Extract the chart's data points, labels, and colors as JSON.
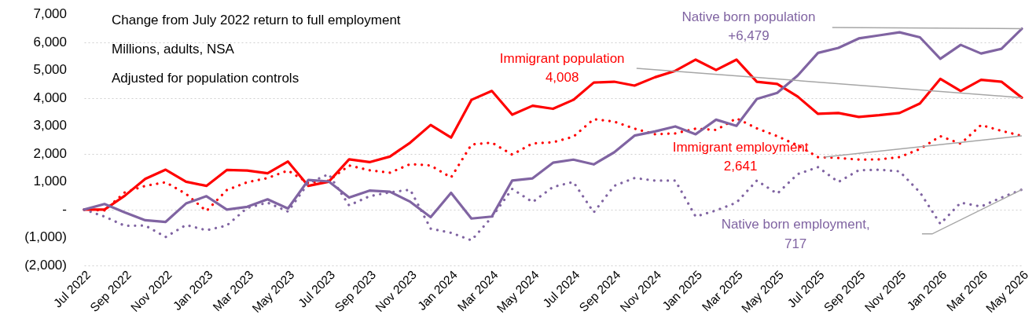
{
  "chart_data": {
    "type": "line",
    "annotations": [
      "Change from July 2022 return to full employment",
      "Millions, adults, NSA",
      "Adjusted for population controls",
      "4,008",
      "2,641",
      "+6,479",
      "717"
    ],
    "categories": [
      "Jul 2022",
      null,
      "Sep 2022",
      null,
      "Nov 2022",
      null,
      "Jan 2023",
      null,
      "Mar 2023",
      null,
      "May 2023",
      null,
      "Jul 2023",
      null,
      "Sep 2023",
      null,
      "Nov 2023",
      null,
      "Jan 2024",
      null,
      "Mar 2024",
      null,
      "May 2024",
      null,
      "Jul 2024",
      null,
      "Sep 2024",
      null,
      "Nov 2024",
      null,
      "Jan 2025",
      null,
      "Mar 2025",
      null,
      "May 2025",
      null,
      "Jul 2025",
      null,
      "Sep 2025",
      null,
      "Nov 2025",
      null,
      "Jan 2026",
      null,
      "Mar 2026",
      null,
      "May 2026"
    ],
    "series": [
      {
        "name": "Immigrant population",
        "color": "#ff0000",
        "line_style": "solid",
        "values": [
          0,
          0,
          500,
          1100,
          1430,
          1000,
          850,
          1420,
          1400,
          1300,
          1720,
          850,
          1000,
          1800,
          1700,
          1900,
          2400,
          3030,
          2580,
          3930,
          4250,
          3400,
          3720,
          3610,
          3930,
          4550,
          4580,
          4440,
          4740,
          4970,
          5370,
          5000,
          5370,
          4580,
          4500,
          4050,
          3430,
          3460,
          3320,
          3380,
          3460,
          3800,
          4680,
          4250,
          4650,
          4580,
          4008
        ]
      },
      {
        "name": "Immigrant employment",
        "color": "#ff0000",
        "line_style": "dotted",
        "values": [
          0,
          -30,
          620,
          850,
          980,
          560,
          -50,
          700,
          980,
          1130,
          1400,
          950,
          1040,
          1580,
          1410,
          1320,
          1630,
          1580,
          1150,
          2330,
          2400,
          1970,
          2370,
          2410,
          2610,
          3240,
          3150,
          2900,
          2700,
          2730,
          2900,
          2850,
          3270,
          2910,
          2630,
          2300,
          1880,
          1850,
          1790,
          1800,
          1880,
          2170,
          2630,
          2360,
          3030,
          2820,
          2641
        ]
      },
      {
        "name": "Native born population",
        "color": "#8064a2",
        "line_style": "solid",
        "values": [
          0,
          200,
          -100,
          -380,
          -440,
          220,
          480,
          0,
          100,
          370,
          40,
          1060,
          1010,
          430,
          680,
          640,
          280,
          -270,
          600,
          -320,
          -250,
          1040,
          1120,
          1680,
          1790,
          1620,
          2050,
          2650,
          2800,
          2980,
          2700,
          3220,
          3000,
          3960,
          4180,
          4800,
          5610,
          5790,
          6130,
          6240,
          6350,
          6170,
          5400,
          5900,
          5590,
          5760,
          6479
        ]
      },
      {
        "name": "Native born employment,",
        "color": "#8064a2",
        "line_style": "dotted",
        "values": [
          0,
          -250,
          -580,
          -570,
          -980,
          -550,
          -740,
          -570,
          60,
          250,
          -70,
          950,
          1270,
          150,
          480,
          620,
          710,
          -680,
          -830,
          -1100,
          -270,
          740,
          270,
          810,
          990,
          -100,
          850,
          1130,
          1040,
          1040,
          -250,
          -30,
          250,
          1040,
          570,
          1270,
          1520,
          990,
          1410,
          1430,
          1370,
          620,
          -510,
          250,
          110,
          430,
          717
        ]
      }
    ],
    "ylim": [
      -2000,
      7000
    ],
    "yticks": [
      {
        "value": 7000,
        "label": "7,000"
      },
      {
        "value": 6000,
        "label": "6,000"
      },
      {
        "value": 5000,
        "label": "5,000"
      },
      {
        "value": 4000,
        "label": "4,000"
      },
      {
        "value": 3000,
        "label": "3,000"
      },
      {
        "value": 2000,
        "label": "2,000"
      },
      {
        "value": 1000,
        "label": "1,000"
      },
      {
        "value": 0,
        "label": "-"
      },
      {
        "value": -1000,
        "label": "(1,000)"
      },
      {
        "value": -2000,
        "label": "(2,000)"
      }
    ],
    "grid": "y",
    "marker": "none"
  }
}
